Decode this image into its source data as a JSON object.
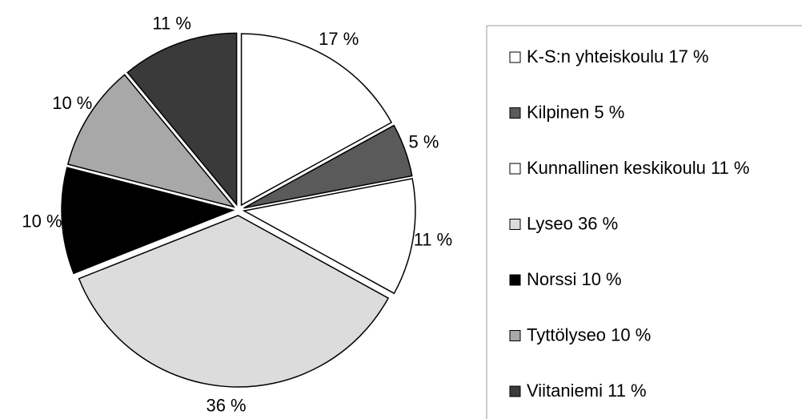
{
  "chart_data": {
    "type": "pie",
    "categories": [
      "K-S:n yhteiskoulu",
      "Kilpinen",
      "Kunnallinen keskikoulu",
      "Lyseo",
      "Norssi",
      "Tyttölyseo",
      "Viitaniemi"
    ],
    "values": [
      17,
      5,
      11,
      36,
      10,
      10,
      11
    ],
    "value_labels": [
      "17 %",
      "5 %",
      "11 %",
      "36 %",
      "10 %",
      "10 %",
      "11 %"
    ],
    "colors": [
      "#ffffff",
      "#5a5a5a",
      "#ffffff",
      "#dcdcdc",
      "#000000",
      "#a8a8a8",
      "#3a3a3a"
    ]
  }
}
